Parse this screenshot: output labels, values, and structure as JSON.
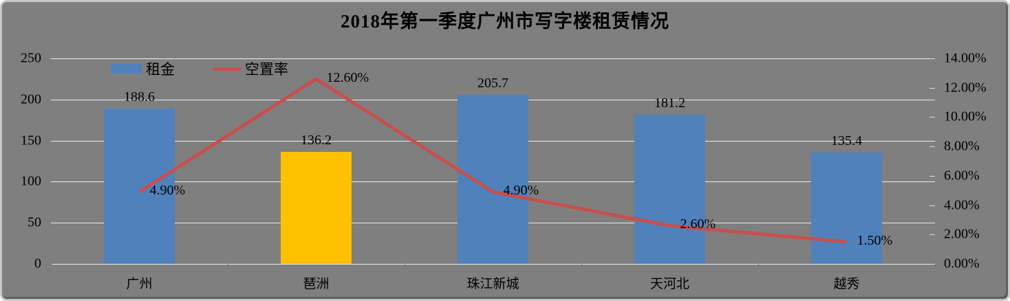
{
  "title": "2018年第一季度广州市写字楼租赁情况",
  "legend": {
    "items": [
      {
        "label": "租金",
        "swatch": "bar",
        "color": "#4f81bd"
      },
      {
        "label": "空置率",
        "swatch": "line",
        "color": "#c5504e"
      }
    ]
  },
  "chart_data": {
    "type": "bar",
    "subtype": "bar+line combo, dual axis",
    "title": "2018年第一季度广州市写字楼租赁情况",
    "categories": [
      "广州",
      "琶洲",
      "珠江新城",
      "天河北",
      "越秀"
    ],
    "series": [
      {
        "name": "租金",
        "type": "bar",
        "axis": "left",
        "values": [
          188.6,
          136.2,
          205.7,
          181.2,
          135.4
        ],
        "data_labels": [
          "188.6",
          "136.2",
          "205.7",
          "181.2",
          "135.4"
        ],
        "bar_colors": [
          "#4f81bd",
          "#ffc000",
          "#4f81bd",
          "#4f81bd",
          "#4f81bd"
        ]
      },
      {
        "name": "空置率",
        "type": "line",
        "axis": "right",
        "values": [
          4.9,
          12.6,
          4.9,
          2.6,
          1.5
        ],
        "data_labels": [
          "4.90%",
          "12.60%",
          "4.90%",
          "2.60%",
          "1.50%"
        ],
        "color": "#c5504e"
      }
    ],
    "left_axis": {
      "min": 0,
      "max": 250,
      "step": 50,
      "tick_labels": [
        "250",
        "200",
        "150",
        "100",
        "50",
        "0"
      ]
    },
    "right_axis": {
      "min": 0,
      "max": 14,
      "step": 2,
      "tick_labels": [
        "14.00%",
        "12.00%",
        "10.00%",
        "8.00%",
        "6.00%",
        "4.00%",
        "2.00%",
        "0.00%"
      ]
    },
    "grid": true,
    "gridline_color": "#efefef",
    "legend_position": "top-inside-left"
  }
}
